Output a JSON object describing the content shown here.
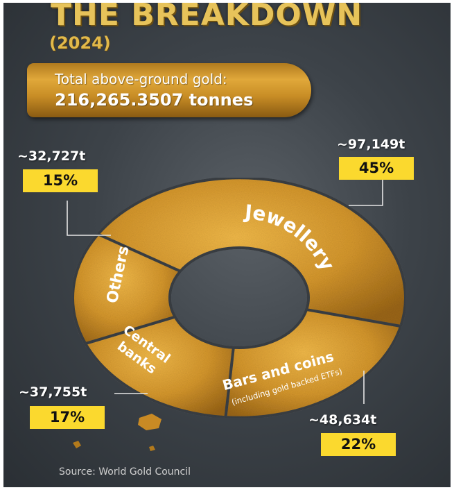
{
  "header": {
    "title": "THE BREAKDOWN",
    "year": "(2024)",
    "total_label": "Total above-ground gold:",
    "total_value": "216,265.3507 tonnes"
  },
  "chart_data": {
    "type": "pie",
    "style": "donut",
    "unit": "tonnes",
    "slices": [
      {
        "label": "Jewellery",
        "sublabel": "",
        "amount_text": "~97,149t",
        "value": 97149,
        "percent": 45,
        "percent_text": "45%"
      },
      {
        "label": "Bars and coins",
        "sublabel": "(including gold backed ETFs)",
        "amount_text": "~48,634t",
        "value": 48634,
        "percent": 22,
        "percent_text": "22%"
      },
      {
        "label": "Central banks",
        "sublabel": "",
        "amount_text": "~37,755t",
        "value": 37755,
        "percent": 17,
        "percent_text": "17%"
      },
      {
        "label": "Others",
        "sublabel": "",
        "amount_text": "~32,727t",
        "value": 32727,
        "percent": 15,
        "percent_text": "15%"
      }
    ],
    "colors": {
      "ring": "#d4962c",
      "label_box": "#fbd92e",
      "background": "#3d4349"
    }
  },
  "footer": {
    "source": "Source: World Gold Council"
  }
}
